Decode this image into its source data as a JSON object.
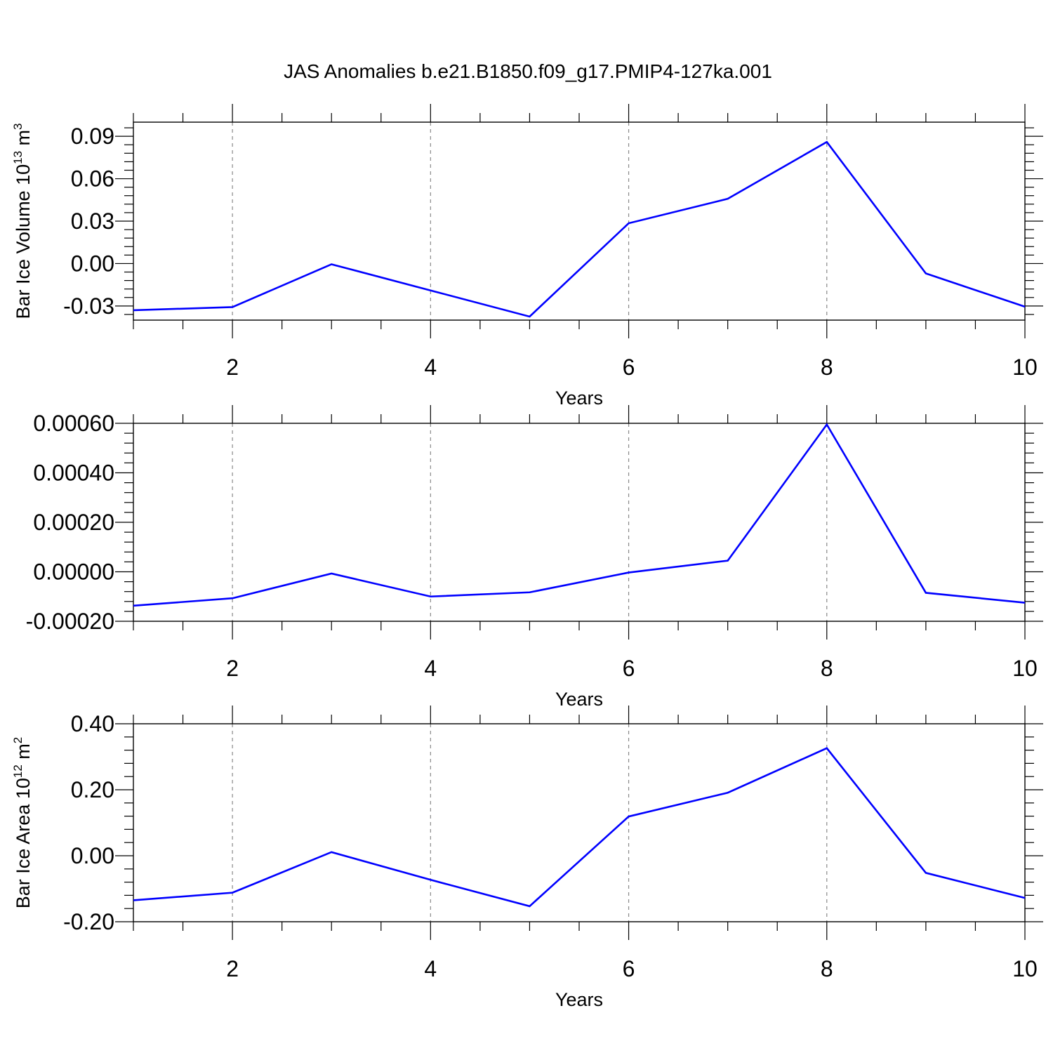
{
  "title": "JAS Anomalies b.e21.B1850.f09_g17.PMIP4-127ka.001",
  "chart_data": [
    {
      "type": "line",
      "ylabel": {
        "text": "Bar Ice Volume 10",
        "exp": "13",
        "unit": " m",
        "unit_exp": "3"
      },
      "xlabel": "Years",
      "xlim": [
        1,
        10
      ],
      "ylim": [
        -0.04,
        0.1
      ],
      "xticks": [
        2,
        4,
        6,
        8,
        10
      ],
      "xtick_labels": [
        "2",
        "4",
        "6",
        "8",
        "10"
      ],
      "yticks": [
        -0.03,
        0.0,
        0.03,
        0.06,
        0.09
      ],
      "ytick_labels": [
        "-0.03",
        "0.00",
        "0.03",
        "0.06",
        "0.09"
      ],
      "x": [
        1,
        2,
        3,
        4,
        5,
        6,
        7,
        8,
        9,
        10
      ],
      "series": [
        {
          "color": "#0000ff",
          "values": [
            -0.033,
            -0.0308,
            -0.0005,
            -0.019,
            -0.0375,
            0.0285,
            0.0458,
            0.086,
            -0.007,
            -0.0305
          ]
        }
      ],
      "grid": "vertical dashed at major x ticks"
    },
    {
      "type": "line",
      "ylabel": null,
      "xlabel": "Years",
      "xlim": [
        1,
        10
      ],
      "ylim": [
        -0.0002,
        0.0006
      ],
      "xticks": [
        2,
        4,
        6,
        8,
        10
      ],
      "xtick_labels": [
        "2",
        "4",
        "6",
        "8",
        "10"
      ],
      "yticks": [
        -0.0002,
        0.0,
        0.0002,
        0.0004,
        0.0006
      ],
      "ytick_labels": [
        "-0.00020",
        "0.00000",
        "0.00020",
        "0.00040",
        "0.00060"
      ],
      "x": [
        1,
        2,
        3,
        4,
        5,
        6,
        7,
        8,
        9,
        10
      ],
      "series": [
        {
          "color": "#0000ff",
          "values": [
            -0.000137,
            -0.000107,
            -7e-06,
            -0.0001,
            -8.3e-05,
            -3e-06,
            4.5e-05,
            0.000595,
            -8.5e-05,
            -0.000125
          ]
        }
      ],
      "grid": "vertical dashed at major x ticks"
    },
    {
      "type": "line",
      "ylabel": {
        "text": "Bar Ice Area 10",
        "exp": "12",
        "unit": " m",
        "unit_exp": "2"
      },
      "xlabel": "Years",
      "xlim": [
        1,
        10
      ],
      "ylim": [
        -0.2,
        0.4
      ],
      "xticks": [
        2,
        4,
        6,
        8,
        10
      ],
      "xtick_labels": [
        "2",
        "4",
        "6",
        "8",
        "10"
      ],
      "yticks": [
        -0.2,
        0.0,
        0.2,
        0.4
      ],
      "ytick_labels": [
        "-0.20",
        "0.00",
        "0.20",
        "0.40"
      ],
      "x": [
        1,
        2,
        3,
        4,
        5,
        6,
        7,
        8,
        9,
        10
      ],
      "series": [
        {
          "color": "#0000ff",
          "values": [
            -0.135,
            -0.112,
            0.011,
            -0.073,
            -0.153,
            0.119,
            0.191,
            0.326,
            -0.052,
            -0.128
          ]
        }
      ],
      "grid": "vertical dashed at major x ticks"
    }
  ]
}
